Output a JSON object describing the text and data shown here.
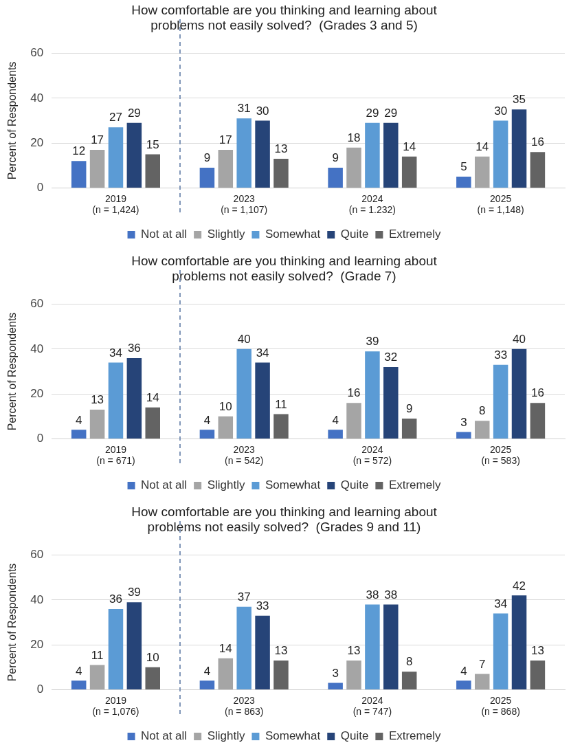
{
  "chart_data": [
    {
      "type": "bar",
      "title": "How comfortable are you thinking and learning about\nproblems not easily solved?  (Grades 3 and 5)",
      "ylabel": "Percent of Respondents",
      "categories": [
        "2019\n(n = 1,424)",
        "2023\n(n = 1,107)",
        "2024\n(n = 1.232)",
        "2025\n(n = 1,148)"
      ],
      "series": [
        {
          "name": "Not at all",
          "color": "#4472c4",
          "values": [
            12,
            9,
            9,
            5
          ]
        },
        {
          "name": "Slightly",
          "color": "#a5a5a5",
          "values": [
            17,
            17,
            18,
            14
          ]
        },
        {
          "name": "Somewhat",
          "color": "#5b9bd5",
          "values": [
            27,
            31,
            29,
            30
          ]
        },
        {
          "name": "Quite",
          "color": "#264478",
          "values": [
            29,
            30,
            29,
            35
          ]
        },
        {
          "name": "Extremely",
          "color": "#636363",
          "values": [
            15,
            13,
            14,
            16
          ]
        }
      ],
      "ylim": [
        0,
        60
      ],
      "yticks": [
        0,
        20,
        40,
        60
      ],
      "grid": "y",
      "legend": "bottom",
      "data_labels": true
    },
    {
      "type": "bar",
      "title": "How comfortable are you thinking and learning about\nproblems not easily solved?  (Grade 7)",
      "ylabel": "Percent of Respondents",
      "categories": [
        "2019\n(n = 671)",
        "2023\n(n = 542)",
        "2024\n(n = 572)",
        "2025\n(n = 583)"
      ],
      "series": [
        {
          "name": "Not at all",
          "color": "#4472c4",
          "values": [
            4,
            4,
            4,
            3
          ]
        },
        {
          "name": "Slightly",
          "color": "#a5a5a5",
          "values": [
            13,
            10,
            16,
            8
          ]
        },
        {
          "name": "Somewhat",
          "color": "#5b9bd5",
          "values": [
            34,
            40,
            39,
            33
          ]
        },
        {
          "name": "Quite",
          "color": "#264478",
          "values": [
            36,
            34,
            32,
            40
          ]
        },
        {
          "name": "Extremely",
          "color": "#636363",
          "values": [
            14,
            11,
            9,
            16
          ]
        }
      ],
      "ylim": [
        0,
        60
      ],
      "yticks": [
        0,
        20,
        40,
        60
      ],
      "grid": "y",
      "legend": "bottom",
      "data_labels": true
    },
    {
      "type": "bar",
      "title": "How comfortable are you thinking and learning about\nproblems not easily solved?  (Grades 9 and 11)",
      "ylabel": "Percent of Respondents",
      "categories": [
        "2019\n(n = 1,076)",
        "2023\n(n = 863)",
        "2024\n(n = 747)",
        "2025\n(n = 868)"
      ],
      "series": [
        {
          "name": "Not at all",
          "color": "#4472c4",
          "values": [
            4,
            4,
            3,
            4
          ]
        },
        {
          "name": "Slightly",
          "color": "#a5a5a5",
          "values": [
            11,
            14,
            13,
            7
          ]
        },
        {
          "name": "Somewhat",
          "color": "#5b9bd5",
          "values": [
            36,
            37,
            38,
            34
          ]
        },
        {
          "name": "Quite",
          "color": "#264478",
          "values": [
            39,
            33,
            38,
            42
          ]
        },
        {
          "name": "Extremely",
          "color": "#636363",
          "values": [
            10,
            13,
            8,
            13
          ]
        }
      ],
      "ylim": [
        0,
        60
      ],
      "yticks": [
        0,
        20,
        40,
        60
      ],
      "grid": "y",
      "legend": "bottom",
      "data_labels": true
    }
  ]
}
